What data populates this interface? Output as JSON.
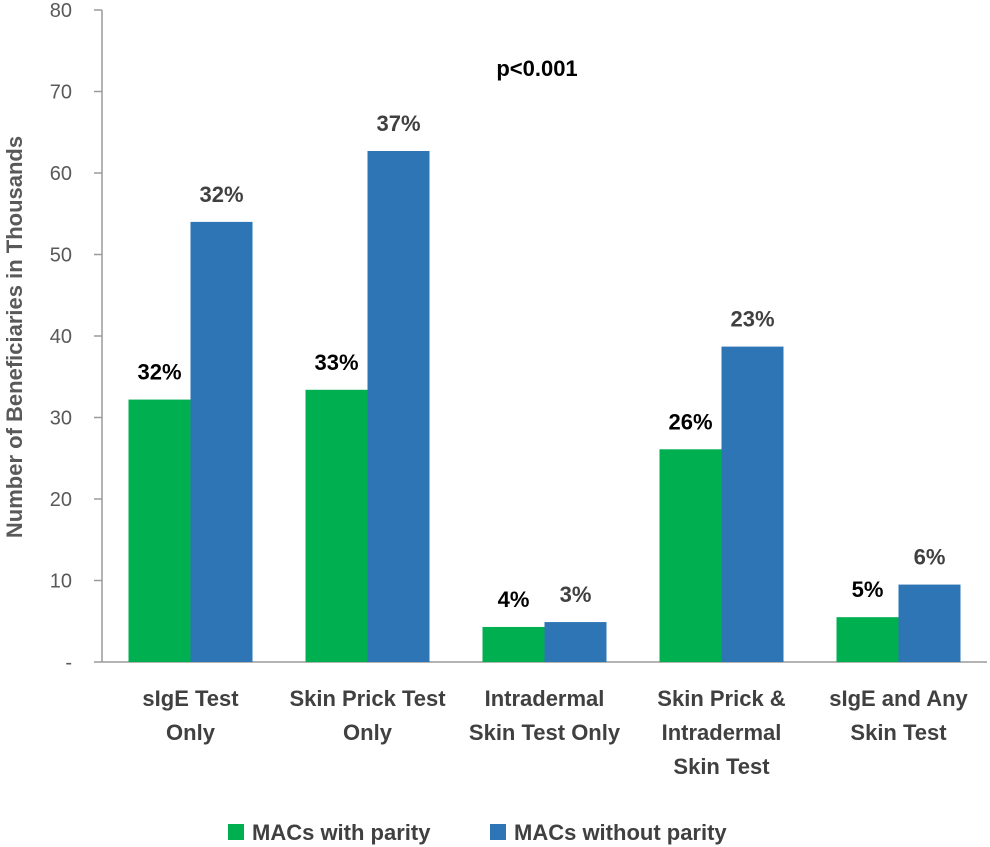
{
  "chart_data": {
    "type": "bar",
    "title": "",
    "xlabel": "",
    "ylabel": "Number of Beneficiaries in Thousands",
    "ylim": [
      0,
      80
    ],
    "yticks": [
      0,
      10,
      20,
      30,
      40,
      50,
      60,
      70,
      80
    ],
    "ytick_labels": [
      "-",
      "10",
      "20",
      "30",
      "40",
      "50",
      "60",
      "70",
      "80"
    ],
    "grid": false,
    "legend_position": "bottom",
    "annotation": "p<0.001",
    "categories": [
      [
        "sIgE Test",
        "Only"
      ],
      [
        "Skin Prick Test",
        "Only"
      ],
      [
        "Intradermal",
        "Skin Test Only"
      ],
      [
        "Skin Prick &",
        "Intradermal",
        "Skin Test"
      ],
      [
        "sIgE and Any",
        "Skin Test"
      ]
    ],
    "series": [
      {
        "name": "MACs with parity",
        "color": "#00b050",
        "values": [
          32.2,
          33.4,
          4.3,
          26.1,
          5.5
        ],
        "labels": [
          "32%",
          "33%",
          "4%",
          "26%",
          "5%"
        ]
      },
      {
        "name": "MACs without parity",
        "color": "#2e75b6",
        "values": [
          54.0,
          62.7,
          4.9,
          38.7,
          9.5
        ],
        "labels": [
          "32%",
          "37%",
          "3%",
          "23%",
          "6%"
        ]
      }
    ]
  }
}
